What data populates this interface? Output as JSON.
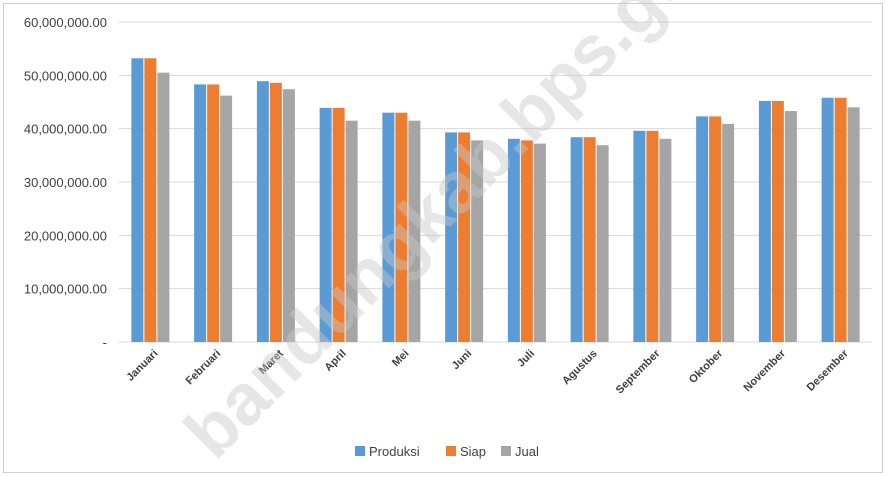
{
  "chart_data": {
    "type": "bar",
    "categories": [
      "Januari",
      "Februari",
      "Maret",
      "April",
      "Mei",
      "Juni",
      "Juli",
      "Agustus",
      "September",
      "Oktober",
      "November",
      "Desember"
    ],
    "series": [
      {
        "name": "Produksi",
        "color": "#5b9bd5",
        "values": [
          53200000,
          48300000,
          48900000,
          43900000,
          43000000,
          39300000,
          38100000,
          38400000,
          39600000,
          42300000,
          45200000,
          45800000
        ]
      },
      {
        "name": "Siap",
        "color": "#ed7d31",
        "values": [
          53200000,
          48300000,
          48600000,
          43900000,
          43000000,
          39300000,
          37800000,
          38400000,
          39600000,
          42300000,
          45200000,
          45800000
        ]
      },
      {
        "name": "Jual",
        "color": "#a5a5a5",
        "values": [
          50500000,
          46200000,
          47400000,
          41500000,
          41500000,
          37800000,
          37200000,
          36900000,
          38100000,
          40900000,
          43300000,
          44000000
        ]
      }
    ],
    "ylim": [
      0,
      60000000
    ],
    "yticks": [
      0,
      10000000,
      20000000,
      30000000,
      40000000,
      50000000,
      60000000
    ],
    "ytick_labels": [
      "-",
      "10,000,000.00",
      "20,000,000.00",
      "30,000,000.00",
      "40,000,000.00",
      "50,000,000.00",
      "60,000,000.00"
    ],
    "grid": true,
    "legend_position": "bottom",
    "watermark": "bandungkab.bps.go.id"
  }
}
